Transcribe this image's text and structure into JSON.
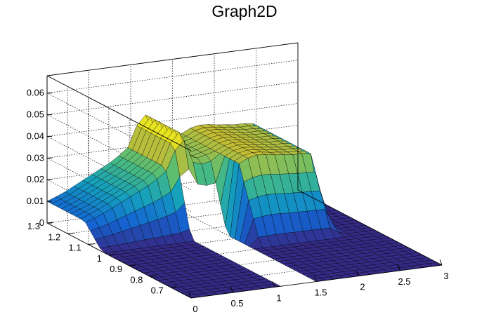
{
  "chart_data": {
    "type": "surface",
    "title": "Graph2D",
    "xlabel": "",
    "ylabel": "",
    "zlabel": "",
    "xlim": [
      0,
      3
    ],
    "ylim": [
      0.6,
      1.3
    ],
    "zlim": [
      0,
      0.068
    ],
    "x_ticks": [
      0,
      0.5,
      1,
      1.5,
      2,
      2.5,
      3
    ],
    "x_tick_labels": [
      "0",
      "0.5",
      "1",
      "1.5",
      "2",
      "2.5",
      "3"
    ],
    "y_ticks": [
      0.7,
      0.8,
      0.9,
      1,
      1.1,
      1.2,
      1.3
    ],
    "y_tick_labels": [
      "0.7",
      "0.8",
      "0.9",
      "1",
      "1.1",
      "1.2",
      "1.3"
    ],
    "z_ticks": [
      0,
      0.01,
      0.02,
      0.03,
      0.04,
      0.05,
      0.06
    ],
    "z_tick_labels": [
      "0",
      "0.01",
      "0.02",
      "0.03",
      "0.04",
      "0.05",
      "0.06"
    ],
    "grid": true,
    "colormap": "viridis-like (blue-green-yellow)",
    "nx": 28,
    "ny": 30,
    "surface_profile": {
      "x": [
        0.0,
        0.2,
        0.4,
        0.6,
        0.8,
        0.9,
        1.0,
        1.05,
        1.1,
        1.2,
        1.25,
        1.3,
        1.4,
        1.5,
        1.6,
        1.7,
        1.8,
        1.9,
        2.0,
        2.1,
        2.2,
        2.3,
        2.4,
        2.5,
        2.6,
        2.8,
        3.0
      ],
      "z_at_y_max": [
        0.01,
        0.013,
        0.017,
        0.021,
        0.025,
        0.028,
        0.031,
        0.035,
        0.042,
        0.04,
        0.036,
        0.031,
        0.031,
        0.032,
        0.033,
        0.035,
        0.036,
        0.036,
        0.035,
        0.035,
        0.034,
        0.034,
        0.034,
        0.033,
        0.0,
        0.0,
        0.0
      ],
      "z_at_y_front": [
        0.0,
        0.0,
        0.0,
        0.0,
        0.0,
        0.0,
        0.0,
        0.0,
        0.0,
        0.0,
        0.0,
        0.0,
        0.0,
        0.0,
        0.0,
        0.0,
        0.0,
        0.0,
        0.0,
        0.0,
        0.0,
        0.0,
        0.0,
        0.0,
        0.0,
        0.0,
        0.0
      ],
      "hole_x_range": [
        1.1,
        1.45
      ],
      "hole_y_range": [
        0.6,
        1.08
      ]
    }
  }
}
